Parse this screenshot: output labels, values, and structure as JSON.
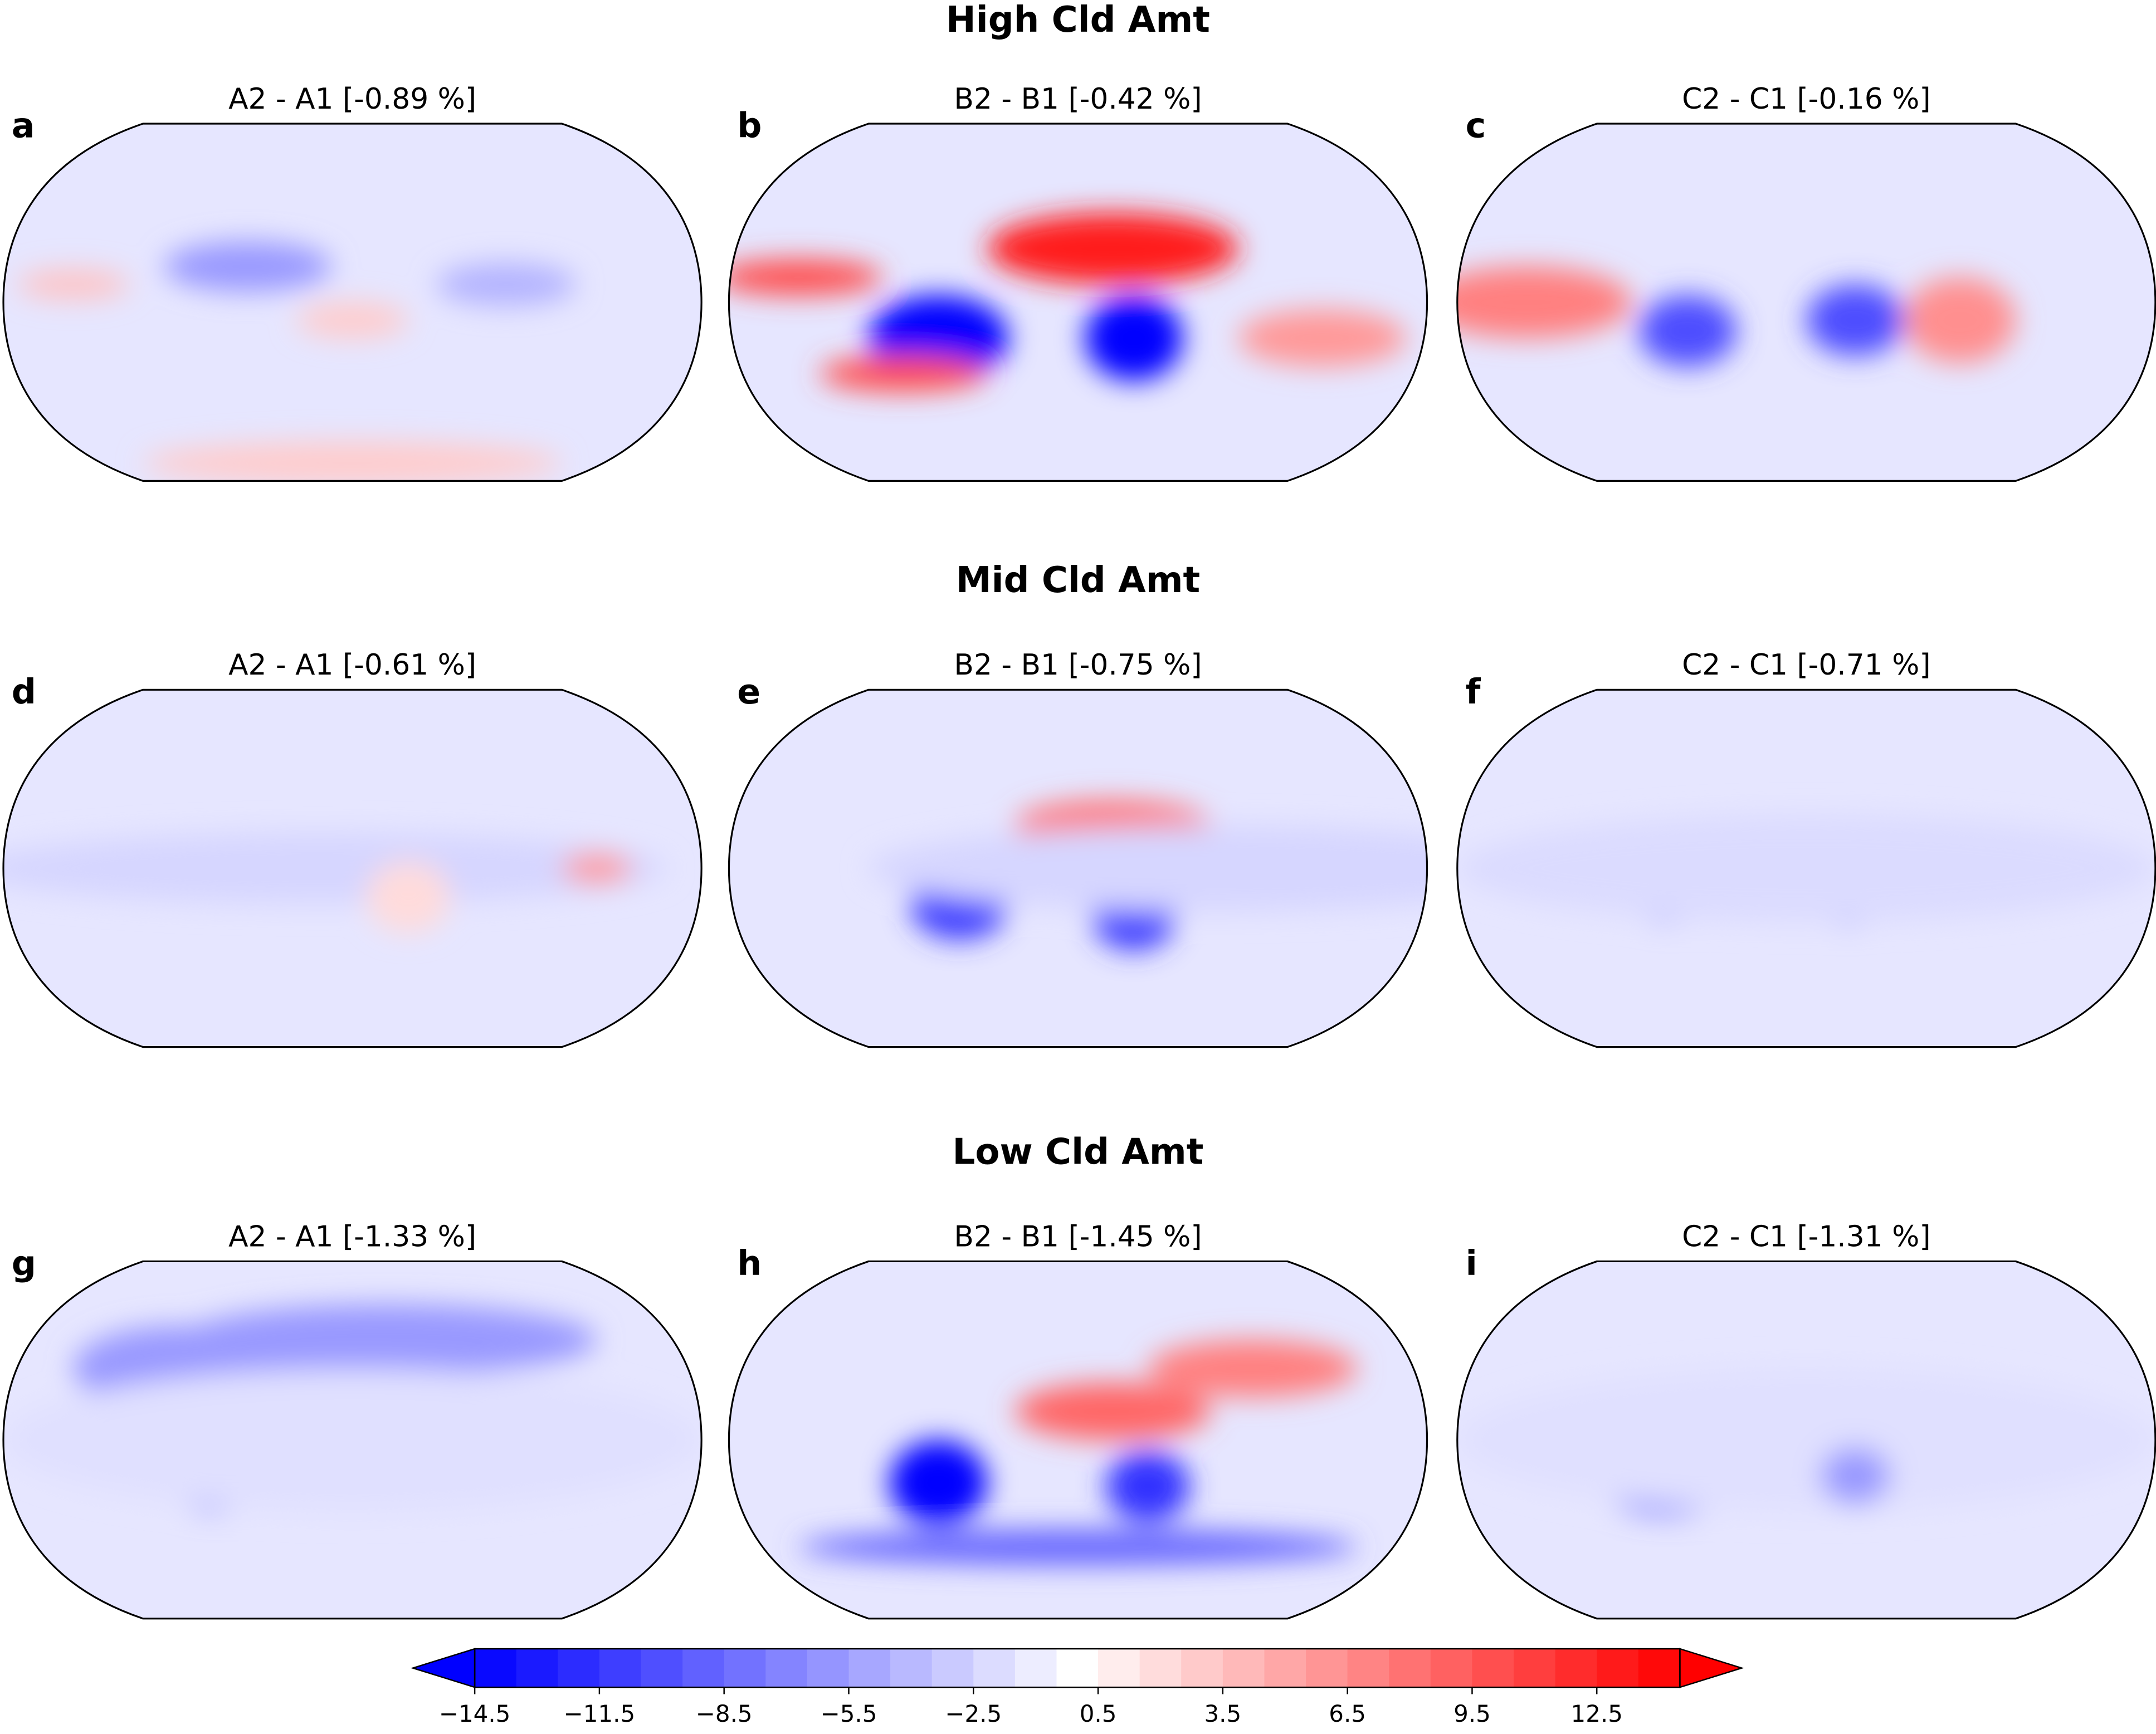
{
  "sections": [
    {
      "title": "High Cld Amt",
      "panels": [
        {
          "label": "a",
          "title": "A2 - A1 [-0.89 %]"
        },
        {
          "label": "b",
          "title": "B2 - B1 [-0.42 %]"
        },
        {
          "label": "c",
          "title": "C2 - C1 [-0.16 %]"
        }
      ]
    },
    {
      "title": "Mid Cld Amt",
      "panels": [
        {
          "label": "d",
          "title": "A2 - A1 [-0.61 %]"
        },
        {
          "label": "e",
          "title": "B2 - B1 [-0.75 %]"
        },
        {
          "label": "f",
          "title": "C2 - C1 [-0.71 %]"
        }
      ]
    },
    {
      "title": "Low Cld Amt",
      "panels": [
        {
          "label": "g",
          "title": "A2 - A1 [-1.33 %]"
        },
        {
          "label": "h",
          "title": "B2 - B1 [-1.45 %]"
        },
        {
          "label": "i",
          "title": "C2 - C1 [-1.31 %]"
        }
      ]
    }
  ],
  "colorbar": {
    "lim": [
      -14.5,
      14.5
    ],
    "ticks": [
      -14.5,
      -11.5,
      -8.5,
      -5.5,
      -2.5,
      0.5,
      3.5,
      6.5,
      9.5,
      12.5
    ],
    "colors": [
      "#0000ff",
      "#ffffff",
      "#ff0000"
    ],
    "extend": "both"
  }
}
